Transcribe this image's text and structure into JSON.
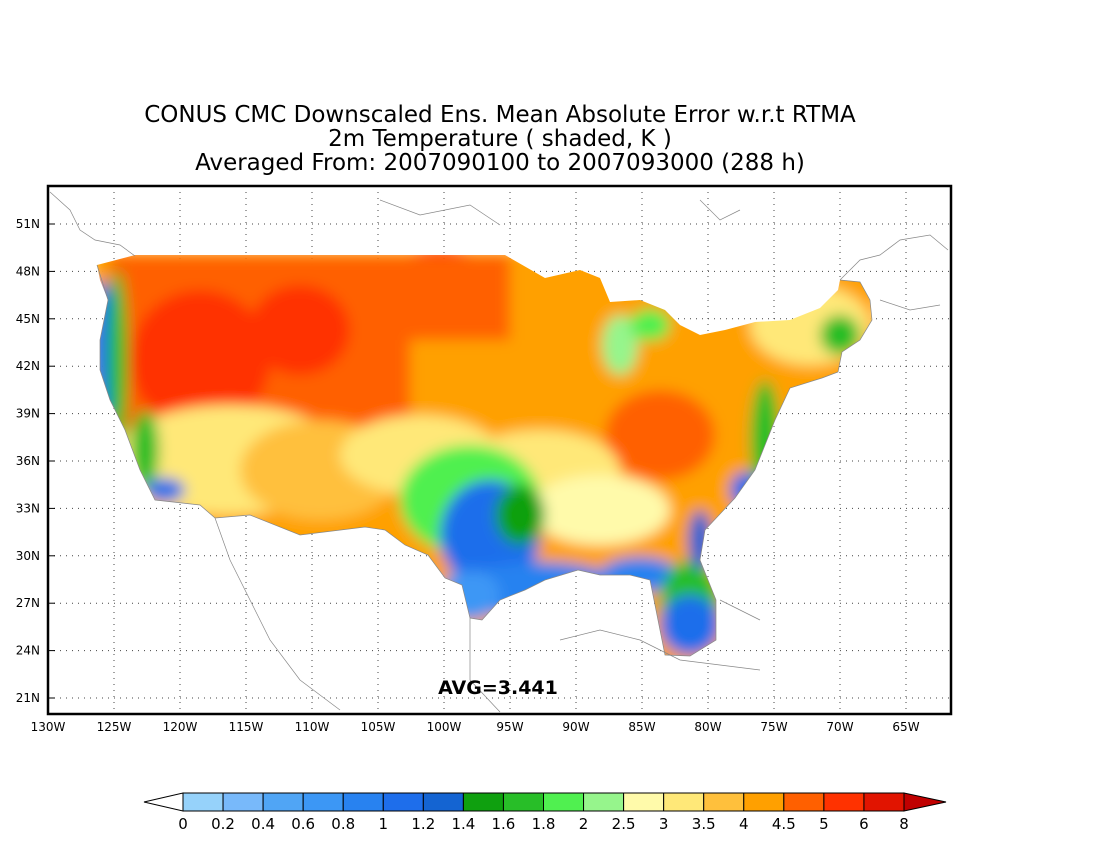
{
  "title": {
    "line1": "CONUS CMC Downscaled Ens. Mean Absolute Error w.r.t RTMA",
    "line2": "2m Temperature ( shaded, K )",
    "line3": "Averaged From: 2007090100 to 2007093000 (288 h)"
  },
  "avg_label": "AVG=3.441",
  "lat_ticks": [
    "51N",
    "48N",
    "45N",
    "42N",
    "39N",
    "36N",
    "33N",
    "30N",
    "27N",
    "24N",
    "21N"
  ],
  "lon_ticks": [
    "130W",
    "125W",
    "120W",
    "115W",
    "110W",
    "105W",
    "100W",
    "95W",
    "90W",
    "85W",
    "80W",
    "75W",
    "70W",
    "65W"
  ],
  "colorbar": {
    "labels": [
      "0",
      "0.2",
      "0.4",
      "0.6",
      "0.8",
      "1",
      "1.2",
      "1.4",
      "1.6",
      "1.8",
      "2",
      "2.5",
      "3",
      "3.5",
      "4",
      "4.5",
      "5",
      "6",
      "8"
    ],
    "colors": [
      "#96d2fa",
      "#78b9fa",
      "#50a5f5",
      "#3c97f5",
      "#2882f0",
      "#1e6eeb",
      "#1464d2",
      "#0fa00f",
      "#28be28",
      "#50f050",
      "#96f58c",
      "#fffaaa",
      "#ffe878",
      "#ffc03c",
      "#ffa000",
      "#ff6000",
      "#ff3200",
      "#e11400",
      "#c00000"
    ]
  }
}
